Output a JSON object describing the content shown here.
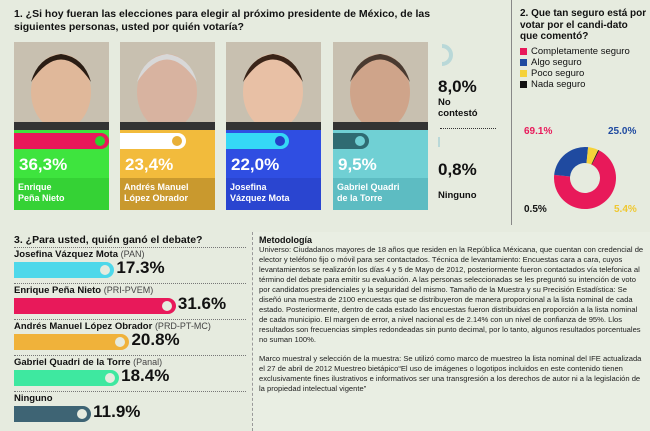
{
  "q1": {
    "title": "1. ¿Si hoy fueran las elecciones para elegir al próximo presidente de México, de las siguientes personas, usted por quién votaría?",
    "candidates": [
      {
        "name1": "Enrique",
        "name2": "Peña Nieto",
        "pct": "36,3%",
        "value": 36.3,
        "bg": "#3ee43e",
        "name_bg": "#35d235",
        "track": "#e8185a",
        "dot": "#2fd02f"
      },
      {
        "name1": "Andrés Manuel",
        "name2": "López Obrador",
        "pct": "23,4%",
        "value": 23.4,
        "bg": "#f2bb3c",
        "name_bg": "#c9992e",
        "track": "#ffffff",
        "dot": "#e8b038"
      },
      {
        "name1": "Josefina",
        "name2": "Vázquez Mota",
        "pct": "22,0%",
        "value": 22.0,
        "bg": "#2f4ee2",
        "name_bg": "#2a45d0",
        "track": "#35d8f6",
        "dot": "#2440c8"
      },
      {
        "name1": "Gabriel Quadri",
        "name2": "de la Torre",
        "pct": "9,5%",
        "value": 9.5,
        "bg": "#70d0d4",
        "name_bg": "#5dbcc2",
        "track": "#2f6b72",
        "dot": "#70d0d4"
      }
    ],
    "no_contesto": {
      "pct": "8,0%",
      "label1": "No",
      "label2": "contestó",
      "value": 8.0
    },
    "ninguno": {
      "pct": "0,8%",
      "label": "Ninguno",
      "value": 0.8
    }
  },
  "chart_data": [
    {
      "type": "bar",
      "title": "1. ¿Si hoy fueran las elecciones para elegir al próximo presidente de México, de las siguientes personas, usted por quién votaría?",
      "categories": [
        "Enrique Peña Nieto",
        "Andrés Manuel López Obrador",
        "Josefina Vázquez Mota",
        "Gabriel Quadri de la Torre",
        "No contestó",
        "Ninguno"
      ],
      "values": [
        36.3,
        23.4,
        22.0,
        9.5,
        8.0,
        0.8
      ]
    },
    {
      "type": "pie",
      "title": "2. Que tan seguro está por votar por el candidato que comentó?",
      "categories": [
        "Completamente seguro",
        "Algo seguro",
        "Poco seguro",
        "Nada seguro"
      ],
      "values": [
        69.1,
        25.0,
        5.4,
        0.5
      ],
      "colors": [
        "#e8195a",
        "#1f4aa0",
        "#f5d23a",
        "#111111"
      ],
      "legend": "top"
    },
    {
      "type": "bar",
      "title": "3. ¿Para usted, quién ganó el debate?",
      "categories": [
        "Josefina Vázquez Mota (PAN)",
        "Enrique Peña Nieto (PRI-PVEM)",
        "Andrés Manuel López Obrador (PRD-PT-MC)",
        "Gabriel Quadri de la Torre (Panal)",
        "Ninguno"
      ],
      "values": [
        17.3,
        31.6,
        20.8,
        18.4,
        11.9
      ]
    }
  ],
  "q2": {
    "title": "2. Que tan seguro está por votar por el candi-dato que comentó?",
    "legend": [
      {
        "label": "Completamente seguro",
        "color": "#e8195a"
      },
      {
        "label": "Algo seguro",
        "color": "#1f4aa0"
      },
      {
        "label": "Poco seguro",
        "color": "#f5d23a"
      },
      {
        "label": "Nada seguro",
        "color": "#111111"
      }
    ],
    "labels": [
      "69.1%",
      "25.0%",
      "5.4%",
      "0.5%"
    ]
  },
  "q3": {
    "title": "3. ¿Para usted, quién ganó el debate?",
    "rows": [
      {
        "name": "Josefina Vázquez Mota",
        "party": "(PAN)",
        "pct": "17.3%",
        "value": 17.3,
        "color": "#4ed8ea"
      },
      {
        "name": "Enrique Peña Nieto",
        "party": "(PRI-PVEM)",
        "pct": "31.6%",
        "value": 31.6,
        "color": "#e8195a"
      },
      {
        "name": "Andrés Manuel López Obrador",
        "party": "(PRD-PT-MC)",
        "pct": "20.8%",
        "value": 20.8,
        "color": "#f0b23a"
      },
      {
        "name": "Gabriel Quadri de la Torre",
        "party": "(Panal)",
        "pct": "18.4%",
        "value": 18.4,
        "color": "#3ee8a0"
      },
      {
        "name": "Ninguno",
        "party": "",
        "pct": "11.9%",
        "value": 11.9,
        "color": "#3e6474"
      }
    ]
  },
  "met": {
    "title": "Metodología",
    "p1": "Universo: Ciudadanos mayores de 18 años que residen en la República Méxicana, que cuentan con credencial de elector y teléfono fijo o móvil para ser contactados. Técnica de levantamiento: Encuestas cara a cara, cuyos levantamientos se realizarón los días 4 y 5 de Mayo de 2012, posteriormente fueron contactados vía telefonica al término del debate para emitir su evaluación. A las personas seleccionadas se les preguntó su intención de voto por candidatos presidenciales y la seguridad del mismo. Tamaño de la Muestra y su Precisión Estadística: Se diseñó una muestra de 2100 encuestas que se distribuyeron de manera proporcional a la lista nominal de cada estado. Posteriormente, dentro de cada estado las encuestas fueron distribuidas en proporción a la lista nominal de cada municipio. El margen de error, a nivel nacional es de 2.14% con un nivel de confianza de 95%. Llos resultados son frecuencias simples redondeadas sin punto decimal, por lo tanto, algunos resultados porcentuales no suman 100%.",
    "p2": "Marco muestral y selección de la muestra: Se utilizó como marco de muestreo la lista nominal del IFE actualizada el 27 de abril de 2012 Muestreo bietápico“El uso de imágenes o logotipos incluidos en este contenido tienen exclusivamente fines ilustrativos e informativos  ser una transgresión a los derechos de autor ni a la legislación de la propiedad intelectual vigente”"
  }
}
